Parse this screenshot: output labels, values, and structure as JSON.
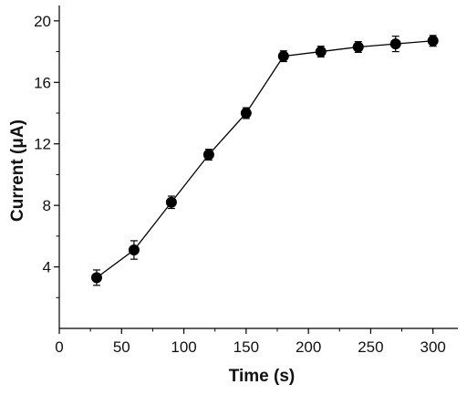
{
  "chart_data": {
    "type": "scatter",
    "title": "",
    "xlabel": "Time (s)",
    "ylabel": "Current (μA)",
    "xlim": [
      0,
      320
    ],
    "ylim": [
      0,
      21
    ],
    "xticks": [
      0,
      50,
      100,
      150,
      200,
      250,
      300
    ],
    "yticks": [
      4,
      8,
      12,
      16,
      20
    ],
    "grid": false,
    "legend": "none",
    "marker_color": "#000000",
    "line_color": "#000000",
    "series": [
      {
        "x": [
          30,
          60,
          90,
          120,
          150,
          180,
          210,
          240,
          270,
          300
        ],
        "y": [
          3.3,
          5.1,
          8.2,
          11.3,
          14.0,
          17.7,
          18.0,
          18.3,
          18.5,
          18.7
        ],
        "error": [
          0.5,
          0.6,
          0.4,
          0.35,
          0.35,
          0.35,
          0.35,
          0.35,
          0.5,
          0.35
        ]
      }
    ]
  }
}
